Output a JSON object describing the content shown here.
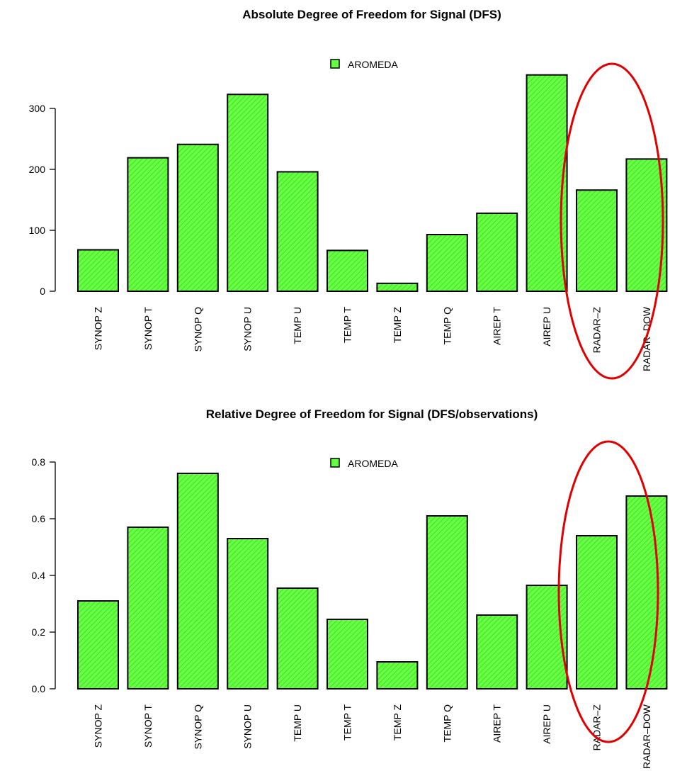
{
  "chart_data": [
    {
      "type": "bar",
      "title": "Absolute Degree of Freedom for Signal (DFS)",
      "categories": [
        "SYNOP Z",
        "SYNOP T",
        "SYNOP Q",
        "SYNOP U",
        "TEMP U",
        "TEMP T",
        "TEMP Z",
        "TEMP Q",
        "AIREP T",
        "AIREP U",
        "RADAR–Z",
        "RADAR–DOW"
      ],
      "series": [
        {
          "name": "AROMEDA",
          "values": [
            68,
            219,
            241,
            323,
            196,
            67,
            13,
            93,
            128,
            355,
            166,
            217
          ]
        }
      ],
      "yticks": [
        "0",
        "100",
        "200",
        "300"
      ],
      "ylim": [
        0,
        370
      ],
      "legend": "top-center",
      "bar_color": "#66ff44",
      "highlight_color": "#e00000",
      "highlight_categories": [
        "RADAR–Z",
        "RADAR–DOW"
      ]
    },
    {
      "type": "bar",
      "title": "Relative Degree of Freedom for Signal (DFS/observations)",
      "categories": [
        "SYNOP Z",
        "SYNOP T",
        "SYNOP Q",
        "SYNOP U",
        "TEMP U",
        "TEMP T",
        "TEMP Z",
        "TEMP Q",
        "AIREP T",
        "AIREP U",
        "RADAR–Z",
        "RADAR–DOW"
      ],
      "series": [
        {
          "name": "AROMEDA",
          "values": [
            0.31,
            0.57,
            0.76,
            0.53,
            0.355,
            0.245,
            0.095,
            0.61,
            0.26,
            0.365,
            0.54,
            0.68
          ]
        }
      ],
      "yticks": [
        "0.0",
        "0.2",
        "0.4",
        "0.6",
        "0.8"
      ],
      "ylim": [
        0,
        0.82
      ],
      "legend": "top-center",
      "bar_color": "#66ff44",
      "highlight_color": "#e00000",
      "highlight_categories": [
        "RADAR–Z",
        "RADAR–DOW"
      ]
    }
  ]
}
